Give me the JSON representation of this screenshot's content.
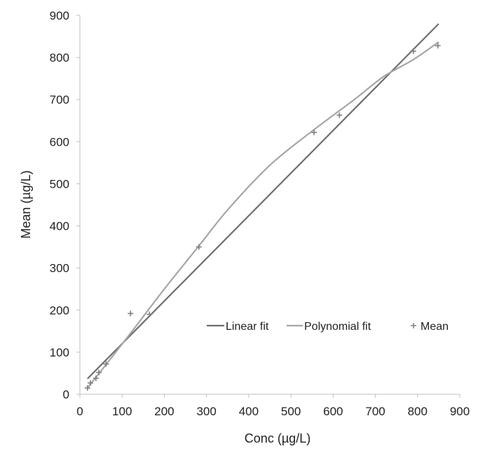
{
  "chart_data": {
    "type": "scatter",
    "title": "",
    "xlabel": "Conc (µg/L)",
    "ylabel": "Mean (µg/L)",
    "xlim": [
      0,
      900
    ],
    "ylim": [
      0,
      900
    ],
    "xticks": [
      "0",
      "100",
      "200",
      "300",
      "400",
      "500",
      "600",
      "700",
      "800",
      "900"
    ],
    "yticks": [
      "0",
      "100",
      "200",
      "300",
      "400",
      "500",
      "600",
      "700",
      "800",
      "900"
    ],
    "grid": false,
    "legend_position": "bottom-right",
    "series": [
      {
        "name": "Linear fit",
        "type": "line",
        "color": "#6e6e6e",
        "x": [
          18,
          850
        ],
        "y": [
          37,
          880
        ]
      },
      {
        "name": "Polynomial fit",
        "type": "line",
        "color": "#a6a6a6",
        "x": [
          18,
          60,
          120,
          200,
          280,
          350,
          450,
          550,
          650,
          720,
          790,
          850
        ],
        "y": [
          15,
          68,
          145,
          250,
          350,
          438,
          544,
          625,
          700,
          755,
          795,
          837
        ]
      },
      {
        "name": "Mean",
        "type": "scatter",
        "color": "#7f7f7f",
        "marker": "+",
        "x": [
          18,
          25,
          38,
          45,
          62,
          120,
          165,
          282,
          555,
          615,
          790,
          848
        ],
        "y": [
          15,
          27,
          38,
          52,
          72,
          192,
          190,
          350,
          622,
          663,
          815,
          828
        ]
      }
    ]
  }
}
